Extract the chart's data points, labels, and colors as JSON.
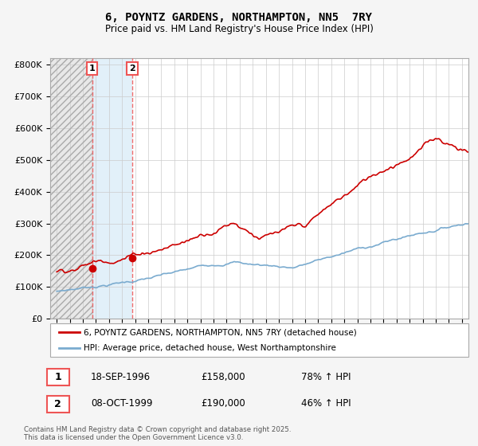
{
  "title": "6, POYNTZ GARDENS, NORTHAMPTON, NN5  7RY",
  "subtitle": "Price paid vs. HM Land Registry's House Price Index (HPI)",
  "ylabel_ticks": [
    "£0",
    "£100K",
    "£200K",
    "£300K",
    "£400K",
    "£500K",
    "£600K",
    "£700K",
    "£800K"
  ],
  "yvalues": [
    0,
    100000,
    200000,
    300000,
    400000,
    500000,
    600000,
    700000,
    800000
  ],
  "ylim": [
    0,
    820000
  ],
  "xlim_start": 1993.5,
  "xlim_end": 2025.5,
  "purchase1_date": 1996.72,
  "purchase1_price": 158000,
  "purchase1_label": "1",
  "purchase2_date": 1999.77,
  "purchase2_price": 190000,
  "purchase2_label": "2",
  "red_color": "#cc0000",
  "blue_color": "#7aabcf",
  "dashed_color": "#ee5555",
  "legend_line1": "6, POYNTZ GARDENS, NORTHAMPTON, NN5 7RY (detached house)",
  "legend_line2": "HPI: Average price, detached house, West Northamptonshire",
  "table_row1": [
    "1",
    "18-SEP-1996",
    "£158,000",
    "78% ↑ HPI"
  ],
  "table_row2": [
    "2",
    "08-OCT-1999",
    "£190,000",
    "46% ↑ HPI"
  ],
  "footnote": "Contains HM Land Registry data © Crown copyright and database right 2025.\nThis data is licensed under the Open Government Licence v3.0.",
  "background_color": "#f5f5f5",
  "plot_bg": "#ffffff"
}
